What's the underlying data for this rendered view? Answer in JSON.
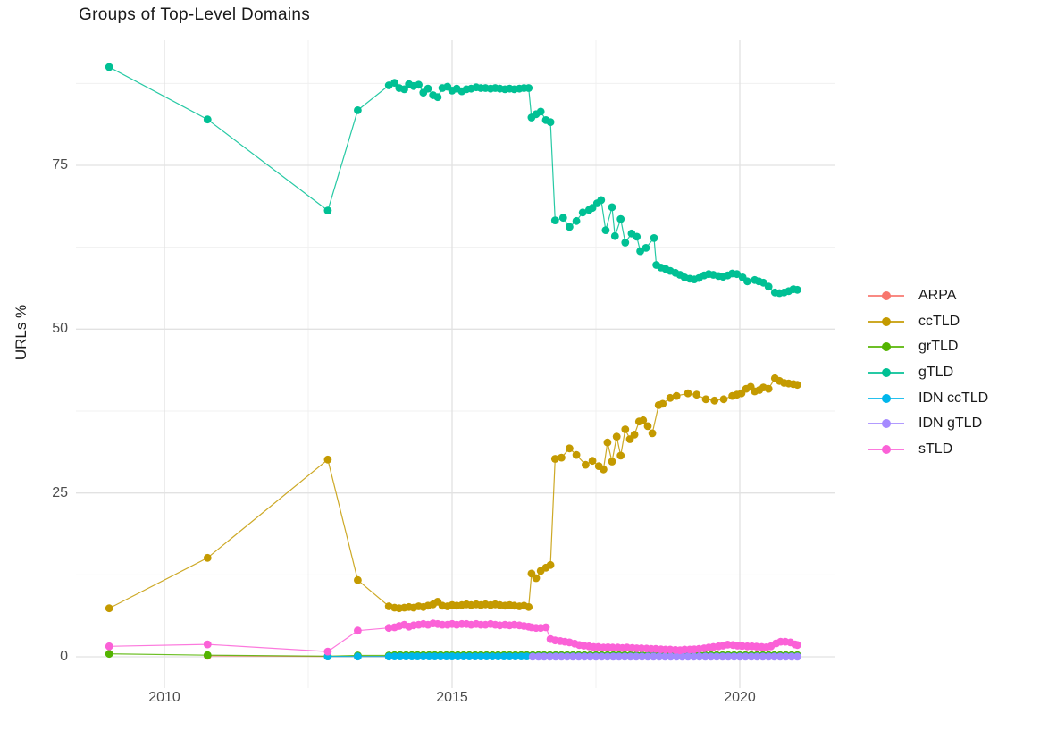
{
  "chart_data": {
    "type": "line",
    "title": "Groups of Top-Level Domains",
    "xlabel": "",
    "ylabel": "URLs %",
    "x_ticks": [
      2010,
      2015,
      2020
    ],
    "x_minor_gridlines": [
      2012.5,
      2017.5
    ],
    "y_ticks": [
      0,
      25,
      50,
      75
    ],
    "y_minor_gridlines": [
      12.5,
      37.5,
      62.5,
      87.5
    ],
    "xlim": [
      2008.45,
      2021.65
    ],
    "ylim": [
      -3,
      92.5
    ],
    "grid": true,
    "legend_position": "right",
    "colors": {
      "title_text": "#1a1a1a",
      "axis_text": "#4d4d4d",
      "grid_major": "#e2e2e2",
      "grid_minor": "#f0f0f0"
    },
    "series": [
      {
        "name": "ARPA",
        "color": "#F8766D",
        "points": [
          [
            2010.75,
            0.15
          ],
          [
            2012.84,
            0.05
          ],
          [
            2013.36,
            0.05
          ],
          [
            2013.9,
            0.05
          ]
        ]
      },
      {
        "name": "ccTLD",
        "color": "#C49A00",
        "points": [
          [
            2009.04,
            7.4
          ],
          [
            2010.75,
            15.1
          ],
          [
            2012.84,
            30.1
          ],
          [
            2013.36,
            11.7
          ],
          [
            2013.9,
            7.7
          ],
          [
            2014.0,
            7.5
          ],
          [
            2014.08,
            7.4
          ],
          [
            2014.17,
            7.5
          ],
          [
            2014.25,
            7.6
          ],
          [
            2014.33,
            7.5
          ],
          [
            2014.42,
            7.7
          ],
          [
            2014.5,
            7.6
          ],
          [
            2014.58,
            7.8
          ],
          [
            2014.67,
            8.0
          ],
          [
            2014.75,
            8.4
          ],
          [
            2014.83,
            7.8
          ],
          [
            2014.92,
            7.7
          ],
          [
            2015.0,
            7.9
          ],
          [
            2015.08,
            7.8
          ],
          [
            2015.17,
            7.9
          ],
          [
            2015.25,
            8.0
          ],
          [
            2015.33,
            7.9
          ],
          [
            2015.42,
            8.0
          ],
          [
            2015.5,
            7.9
          ],
          [
            2015.58,
            8.0
          ],
          [
            2015.67,
            7.9
          ],
          [
            2015.75,
            8.0
          ],
          [
            2015.83,
            7.9
          ],
          [
            2015.92,
            7.8
          ],
          [
            2016.0,
            7.9
          ],
          [
            2016.08,
            7.8
          ],
          [
            2016.17,
            7.7
          ],
          [
            2016.25,
            7.8
          ],
          [
            2016.33,
            7.6
          ],
          [
            2016.38,
            12.7
          ],
          [
            2016.46,
            12.0
          ],
          [
            2016.54,
            13.1
          ],
          [
            2016.63,
            13.6
          ],
          [
            2016.71,
            14.0
          ],
          [
            2016.79,
            30.2
          ],
          [
            2016.9,
            30.4
          ],
          [
            2017.04,
            31.8
          ],
          [
            2017.16,
            30.8
          ],
          [
            2017.32,
            29.3
          ],
          [
            2017.44,
            29.9
          ],
          [
            2017.55,
            29.1
          ],
          [
            2017.63,
            28.6
          ],
          [
            2017.7,
            32.7
          ],
          [
            2017.78,
            29.8
          ],
          [
            2017.86,
            33.6
          ],
          [
            2017.93,
            30.7
          ],
          [
            2018.01,
            34.7
          ],
          [
            2018.09,
            33.2
          ],
          [
            2018.17,
            33.9
          ],
          [
            2018.25,
            35.9
          ],
          [
            2018.32,
            36.1
          ],
          [
            2018.4,
            35.2
          ],
          [
            2018.48,
            34.1
          ],
          [
            2018.59,
            38.4
          ],
          [
            2018.66,
            38.6
          ],
          [
            2018.79,
            39.5
          ],
          [
            2018.9,
            39.8
          ],
          [
            2019.1,
            40.2
          ],
          [
            2019.25,
            40.0
          ],
          [
            2019.41,
            39.3
          ],
          [
            2019.56,
            39.1
          ],
          [
            2019.72,
            39.3
          ],
          [
            2019.87,
            39.8
          ],
          [
            2019.95,
            40.0
          ],
          [
            2020.03,
            40.2
          ],
          [
            2020.11,
            40.9
          ],
          [
            2020.19,
            41.2
          ],
          [
            2020.26,
            40.5
          ],
          [
            2020.34,
            40.7
          ],
          [
            2020.41,
            41.1
          ],
          [
            2020.5,
            40.9
          ],
          [
            2020.61,
            42.5
          ],
          [
            2020.69,
            42.1
          ],
          [
            2020.77,
            41.8
          ],
          [
            2020.85,
            41.7
          ],
          [
            2020.93,
            41.6
          ],
          [
            2021.0,
            41.5
          ]
        ]
      },
      {
        "name": "grTLD",
        "color": "#53B400",
        "points": [
          [
            2009.04,
            0.45
          ],
          [
            2010.75,
            0.25
          ],
          [
            2012.84,
            0.1
          ],
          [
            2013.36,
            0.2
          ],
          [
            2013.9,
            0.2
          ]
        ],
        "run": {
          "from": 2014.0,
          "to": 2021.0,
          "step": 0.1,
          "value": 0.25
        }
      },
      {
        "name": "gTLD",
        "color": "#00C094",
        "points": [
          [
            2009.04,
            90
          ],
          [
            2010.75,
            82
          ],
          [
            2012.84,
            68.1
          ],
          [
            2013.36,
            83.4
          ],
          [
            2013.9,
            87.2
          ],
          [
            2014.0,
            87.6
          ],
          [
            2014.08,
            86.8
          ],
          [
            2014.17,
            86.6
          ],
          [
            2014.25,
            87.4
          ],
          [
            2014.33,
            87.1
          ],
          [
            2014.42,
            87.3
          ],
          [
            2014.5,
            86.1
          ],
          [
            2014.58,
            86.7
          ],
          [
            2014.67,
            85.7
          ],
          [
            2014.75,
            85.4
          ],
          [
            2014.83,
            86.8
          ],
          [
            2014.92,
            87.0
          ],
          [
            2015.0,
            86.4
          ],
          [
            2015.08,
            86.7
          ],
          [
            2015.17,
            86.3
          ],
          [
            2015.25,
            86.6
          ],
          [
            2015.33,
            86.7
          ],
          [
            2015.42,
            86.9
          ],
          [
            2015.5,
            86.8
          ],
          [
            2015.58,
            86.8
          ],
          [
            2015.67,
            86.7
          ],
          [
            2015.75,
            86.8
          ],
          [
            2015.83,
            86.7
          ],
          [
            2015.92,
            86.6
          ],
          [
            2016.0,
            86.7
          ],
          [
            2016.08,
            86.6
          ],
          [
            2016.17,
            86.7
          ],
          [
            2016.25,
            86.8
          ],
          [
            2016.33,
            86.8
          ],
          [
            2016.38,
            82.3
          ],
          [
            2016.46,
            82.8
          ],
          [
            2016.54,
            83.2
          ],
          [
            2016.63,
            81.9
          ],
          [
            2016.71,
            81.6
          ],
          [
            2016.79,
            66.6
          ],
          [
            2016.93,
            67.0
          ],
          [
            2017.04,
            65.6
          ],
          [
            2017.16,
            66.5
          ],
          [
            2017.27,
            67.8
          ],
          [
            2017.38,
            68.2
          ],
          [
            2017.44,
            68.5
          ],
          [
            2017.52,
            69.2
          ],
          [
            2017.59,
            69.7
          ],
          [
            2017.67,
            65.1
          ],
          [
            2017.78,
            68.6
          ],
          [
            2017.83,
            64.2
          ],
          [
            2017.93,
            66.8
          ],
          [
            2018.01,
            63.2
          ],
          [
            2018.12,
            64.6
          ],
          [
            2018.21,
            64.1
          ],
          [
            2018.27,
            61.9
          ],
          [
            2018.37,
            62.4
          ],
          [
            2018.51,
            63.9
          ],
          [
            2018.55,
            59.8
          ],
          [
            2018.63,
            59.4
          ],
          [
            2018.71,
            59.2
          ],
          [
            2018.79,
            58.9
          ],
          [
            2018.88,
            58.6
          ],
          [
            2018.96,
            58.3
          ],
          [
            2019.04,
            57.9
          ],
          [
            2019.13,
            57.7
          ],
          [
            2019.21,
            57.6
          ],
          [
            2019.29,
            57.8
          ],
          [
            2019.38,
            58.2
          ],
          [
            2019.46,
            58.4
          ],
          [
            2019.54,
            58.3
          ],
          [
            2019.63,
            58.1
          ],
          [
            2019.71,
            58.0
          ],
          [
            2019.79,
            58.2
          ],
          [
            2019.87,
            58.5
          ],
          [
            2019.95,
            58.4
          ],
          [
            2020.05,
            57.9
          ],
          [
            2020.13,
            57.3
          ],
          [
            2020.26,
            57.5
          ],
          [
            2020.33,
            57.3
          ],
          [
            2020.41,
            57.1
          ],
          [
            2020.5,
            56.5
          ],
          [
            2020.61,
            55.6
          ],
          [
            2020.69,
            55.5
          ],
          [
            2020.77,
            55.6
          ],
          [
            2020.85,
            55.8
          ],
          [
            2020.93,
            56.1
          ],
          [
            2021.0,
            56.0
          ]
        ]
      },
      {
        "name": "IDN ccTLD",
        "color": "#00B6EB",
        "points": [
          [
            2012.84,
            0.05
          ],
          [
            2013.36,
            0.04
          ],
          [
            2013.9,
            0.04
          ]
        ],
        "run": {
          "from": 2014.0,
          "to": 2021.0,
          "step": 0.1,
          "value": 0.05
        }
      },
      {
        "name": "IDN gTLD",
        "color": "#A58AFF",
        "points": [],
        "run": {
          "from": 2016.4,
          "to": 2021.0,
          "step": 0.1,
          "value": 0.02
        }
      },
      {
        "name": "sTLD",
        "color": "#FB61D7",
        "points": [
          [
            2009.04,
            1.6
          ],
          [
            2010.75,
            1.9
          ],
          [
            2012.84,
            0.8
          ],
          [
            2013.36,
            4.0
          ],
          [
            2013.9,
            4.4
          ],
          [
            2014.0,
            4.5
          ],
          [
            2014.08,
            4.7
          ],
          [
            2014.17,
            4.9
          ],
          [
            2014.25,
            4.6
          ],
          [
            2014.33,
            4.8
          ],
          [
            2014.42,
            4.9
          ],
          [
            2014.5,
            5.0
          ],
          [
            2014.58,
            4.9
          ],
          [
            2014.67,
            5.1
          ],
          [
            2014.75,
            5.0
          ],
          [
            2014.83,
            4.9
          ],
          [
            2014.92,
            4.9
          ],
          [
            2015.0,
            5.0
          ],
          [
            2015.08,
            4.9
          ],
          [
            2015.17,
            5.0
          ],
          [
            2015.25,
            5.0
          ],
          [
            2015.33,
            4.9
          ],
          [
            2015.42,
            5.0
          ],
          [
            2015.5,
            4.9
          ],
          [
            2015.58,
            4.9
          ],
          [
            2015.67,
            5.0
          ],
          [
            2015.75,
            4.9
          ],
          [
            2015.83,
            4.8
          ],
          [
            2015.92,
            4.9
          ],
          [
            2016.0,
            4.8
          ],
          [
            2016.08,
            4.9
          ],
          [
            2016.17,
            4.8
          ],
          [
            2016.25,
            4.7
          ],
          [
            2016.33,
            4.6
          ],
          [
            2016.38,
            4.5
          ],
          [
            2016.46,
            4.4
          ],
          [
            2016.54,
            4.4
          ],
          [
            2016.63,
            4.5
          ],
          [
            2016.71,
            2.7
          ],
          [
            2016.79,
            2.5
          ],
          [
            2016.88,
            2.4
          ],
          [
            2016.96,
            2.3
          ],
          [
            2017.04,
            2.2
          ],
          [
            2017.13,
            2.0
          ],
          [
            2017.21,
            1.8
          ],
          [
            2017.29,
            1.7
          ],
          [
            2017.38,
            1.6
          ],
          [
            2017.46,
            1.5
          ],
          [
            2017.54,
            1.5
          ],
          [
            2017.63,
            1.4
          ],
          [
            2017.71,
            1.45
          ],
          [
            2017.79,
            1.4
          ],
          [
            2017.88,
            1.4
          ],
          [
            2017.96,
            1.35
          ],
          [
            2018.04,
            1.4
          ],
          [
            2018.13,
            1.35
          ],
          [
            2018.21,
            1.3
          ],
          [
            2018.29,
            1.3
          ],
          [
            2018.38,
            1.25
          ],
          [
            2018.46,
            1.2
          ],
          [
            2018.54,
            1.2
          ],
          [
            2018.63,
            1.15
          ],
          [
            2018.71,
            1.1
          ],
          [
            2018.79,
            1.1
          ],
          [
            2018.88,
            1.05
          ],
          [
            2018.96,
            1.0
          ],
          [
            2019.04,
            1.1
          ],
          [
            2019.13,
            1.1
          ],
          [
            2019.21,
            1.15
          ],
          [
            2019.29,
            1.2
          ],
          [
            2019.38,
            1.3
          ],
          [
            2019.46,
            1.4
          ],
          [
            2019.54,
            1.5
          ],
          [
            2019.63,
            1.6
          ],
          [
            2019.71,
            1.7
          ],
          [
            2019.79,
            1.85
          ],
          [
            2019.88,
            1.8
          ],
          [
            2019.96,
            1.7
          ],
          [
            2020.04,
            1.65
          ],
          [
            2020.13,
            1.6
          ],
          [
            2020.21,
            1.6
          ],
          [
            2020.29,
            1.55
          ],
          [
            2020.38,
            1.5
          ],
          [
            2020.46,
            1.45
          ],
          [
            2020.54,
            1.6
          ],
          [
            2020.63,
            2.05
          ],
          [
            2020.71,
            2.3
          ],
          [
            2020.79,
            2.3
          ],
          [
            2020.88,
            2.2
          ],
          [
            2020.96,
            1.9
          ],
          [
            2021.0,
            1.8
          ]
        ]
      }
    ]
  }
}
